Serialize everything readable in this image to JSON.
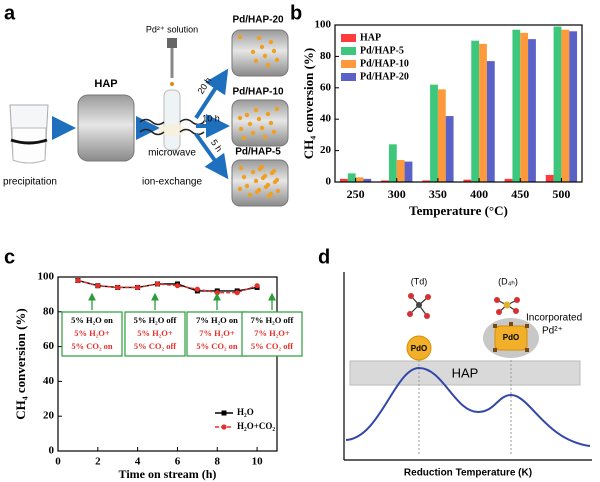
{
  "panel_labels": [
    "a",
    "b",
    "c",
    "d"
  ],
  "scheme": {
    "reagent": "Pd²⁺ solution",
    "support": "HAP",
    "step1": "precipitation",
    "step2": "microwave",
    "step3": "ion-exchange",
    "products": [
      "Pd/HAP-20",
      "Pd/HAP-10",
      "Pd/HAP-5"
    ],
    "times": [
      "20 h",
      "10 h",
      "5 h"
    ]
  },
  "chart_data": [
    {
      "type": "bar",
      "xlabel": "Temperature (°C)",
      "ylabel": "CH₄ conversion (%)",
      "categories": [
        "250",
        "300",
        "350",
        "400",
        "450",
        "500"
      ],
      "series": [
        {
          "name": "HAP",
          "color": "#ff3b3b",
          "values": [
            2,
            1,
            1,
            1.5,
            2,
            4.5
          ]
        },
        {
          "name": "Pd/HAP-5",
          "color": "#3cc77d",
          "values": [
            5.5,
            24,
            62,
            90,
            97,
            99
          ]
        },
        {
          "name": "Pd/HAP-10",
          "color": "#ff9a3c",
          "values": [
            3,
            14,
            59,
            88,
            95,
            97
          ]
        },
        {
          "name": "Pd/HAP-20",
          "color": "#5a62c8",
          "values": [
            2,
            13,
            42,
            77,
            91,
            96
          ]
        }
      ],
      "ylim": [
        0,
        100
      ],
      "yticks": [
        0,
        20,
        40,
        60,
        80,
        100
      ],
      "legend": "upper left"
    },
    {
      "type": "line",
      "xlabel": "Time on stream (h)",
      "ylabel": "CH₄ conversion (%)",
      "x": [
        1,
        2,
        3,
        4,
        5,
        6,
        7,
        8,
        9,
        10
      ],
      "series": [
        {
          "name": "H₂O",
          "color": "#000000",
          "values": [
            98,
            95,
            94,
            94,
            96,
            96,
            92,
            92,
            92,
            94
          ]
        },
        {
          "name": "H₂O+CO₂",
          "color": "#e8302a",
          "values": [
            98,
            95,
            94,
            94,
            96,
            95,
            93,
            91,
            91,
            95
          ]
        }
      ],
      "xlim": [
        0,
        11
      ],
      "xticks": [
        0,
        2,
        4,
        6,
        8,
        10
      ],
      "ylim": [
        0,
        100
      ],
      "yticks": [
        0,
        20,
        40,
        60,
        80,
        100
      ],
      "legend": "lower right",
      "annotations": [
        {
          "lines": [
            {
              "text": "5% H₂O on",
              "color": "#000000"
            },
            {
              "text": "5% H₂O+",
              "color": "#e8302a"
            },
            {
              "text": "5% CO₂ on",
              "color": "#e8302a"
            }
          ]
        },
        {
          "lines": [
            {
              "text": "5% H₂O off",
              "color": "#000000"
            },
            {
              "text": "5% H₂O+",
              "color": "#e8302a"
            },
            {
              "text": "5% CO₂ off",
              "color": "#e8302a"
            }
          ]
        },
        {
          "lines": [
            {
              "text": "7% H₂O on",
              "color": "#000000"
            },
            {
              "text": "7% H₂O+",
              "color": "#e8302a"
            },
            {
              "text": "5% CO₂ on",
              "color": "#e8302a"
            }
          ]
        },
        {
          "lines": [
            {
              "text": "7% H₂O off",
              "color": "#000000"
            },
            {
              "text": "7% H₂O+",
              "color": "#e8302a"
            },
            {
              "text": "5% CO₂ off",
              "color": "#e8302a"
            }
          ]
        }
      ]
    }
  ],
  "diagram": {
    "sites": [
      "(Td)",
      "(D₄ₕ)"
    ],
    "particles": [
      "PdO",
      "PdO"
    ],
    "support": "HAP",
    "annotation": [
      "Incorporated",
      "Pd²⁺"
    ],
    "xlabel": "Reduction Temperature (K)"
  }
}
